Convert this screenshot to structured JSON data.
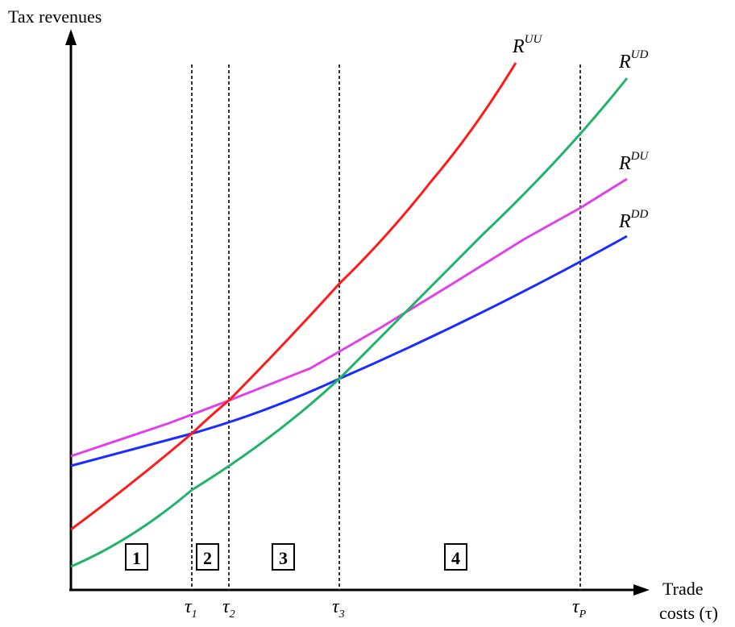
{
  "y_axis_label": "Tax revenues",
  "x_axis_label": {
    "line1": "Trade",
    "line2": "costs (τ)"
  },
  "thresholds": [
    {
      "id": "t1",
      "base": "τ",
      "sub": "1"
    },
    {
      "id": "t2",
      "base": "τ",
      "sub": "2"
    },
    {
      "id": "t3",
      "base": "τ",
      "sub": "3"
    },
    {
      "id": "tp",
      "base": "τ",
      "sub": "P"
    }
  ],
  "regions": [
    "1",
    "2",
    "3",
    "4"
  ],
  "curves": [
    {
      "id": "RUU",
      "base": "R",
      "sup": "UU",
      "color": "#ff1a1a"
    },
    {
      "id": "RUD",
      "base": "R",
      "sup": "UD",
      "color": "#22b36b"
    },
    {
      "id": "RDU",
      "base": "R",
      "sup": "DU",
      "color": "#e040e8"
    },
    {
      "id": "RDD",
      "base": "R",
      "sup": "DD",
      "color": "#1a2cff"
    }
  ],
  "colors": {
    "axis": "#000000",
    "threshold_line": "#333333",
    "background": "#ffffff"
  }
}
